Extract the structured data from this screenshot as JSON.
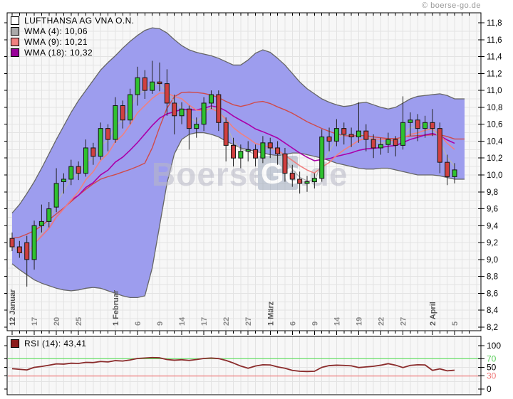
{
  "header": {
    "copyright": "© boerse-go.de"
  },
  "watermark": {
    "part1": "Boerse",
    "part2": "Go",
    "part3": ".de"
  },
  "legend": {
    "items": [
      {
        "label": "LUFTHANSA AG VNA O.N.",
        "swatch": "#ffffff"
      },
      {
        "label": "WMA (4): 10,06",
        "swatch": "#aaaaaa"
      },
      {
        "label": "WMA (9): 10,21",
        "swatch": "#f08080"
      },
      {
        "label": "WMA (18): 10,32",
        "swatch": "#990099"
      }
    ]
  },
  "rsi_legend": {
    "label": "RSI (14): 43,41",
    "swatch": "#8b1a1a"
  },
  "chart_data": [
    {
      "type": "candlestick",
      "title": "LUFTHANSA AG VNA O.N.",
      "ylim": [
        8.2,
        11.8
      ],
      "grid": true,
      "y_ticks": [
        {
          "v": 8.2,
          "label": "8,2"
        },
        {
          "v": 8.4,
          "label": "8,4"
        },
        {
          "v": 8.6,
          "label": "8,6"
        },
        {
          "v": 8.8,
          "label": "8,8"
        },
        {
          "v": 9.0,
          "label": "9,0"
        },
        {
          "v": 9.2,
          "label": "9,2"
        },
        {
          "v": 9.4,
          "label": "9,4"
        },
        {
          "v": 9.6,
          "label": "9,6"
        },
        {
          "v": 9.8,
          "label": "9,8"
        },
        {
          "v": 10.0,
          "label": "10,0"
        },
        {
          "v": 10.2,
          "label": "10,2"
        },
        {
          "v": 10.4,
          "label": "10,4"
        },
        {
          "v": 10.6,
          "label": "10,6"
        },
        {
          "v": 10.8,
          "label": "10,8"
        },
        {
          "v": 11.0,
          "label": "11,0"
        },
        {
          "v": 11.2,
          "label": "11,2"
        },
        {
          "v": 11.4,
          "label": "11,4"
        },
        {
          "v": 11.6,
          "label": "11,6"
        },
        {
          "v": 11.8,
          "label": "11,8"
        }
      ],
      "x_labels": [
        {
          "i": 0,
          "text": "12 Januar",
          "major": true
        },
        {
          "i": 3,
          "text": "17"
        },
        {
          "i": 6,
          "text": "20"
        },
        {
          "i": 9,
          "text": "25"
        },
        {
          "i": 14,
          "text": "1 Februar",
          "major": true
        },
        {
          "i": 17,
          "text": "6"
        },
        {
          "i": 20,
          "text": "9"
        },
        {
          "i": 23,
          "text": "14"
        },
        {
          "i": 26,
          "text": "17"
        },
        {
          "i": 29,
          "text": "22"
        },
        {
          "i": 32,
          "text": "27"
        },
        {
          "i": 35,
          "text": "1 März",
          "major": true
        },
        {
          "i": 38,
          "text": "6"
        },
        {
          "i": 41,
          "text": "9"
        },
        {
          "i": 44,
          "text": "14"
        },
        {
          "i": 47,
          "text": "19"
        },
        {
          "i": 50,
          "text": "22"
        },
        {
          "i": 53,
          "text": "27"
        },
        {
          "i": 57,
          "text": "2 April",
          "major": true
        },
        {
          "i": 60,
          "text": "5"
        }
      ],
      "candles": [
        [
          9.25,
          9.32,
          9.1,
          9.15
        ],
        [
          9.15,
          9.22,
          9.02,
          9.08
        ],
        [
          9.2,
          9.28,
          8.68,
          9.0
        ],
        [
          9.0,
          9.46,
          8.88,
          9.4
        ],
        [
          9.4,
          9.65,
          9.32,
          9.45
        ],
        [
          9.45,
          9.68,
          9.38,
          9.6
        ],
        [
          9.62,
          10.08,
          9.56,
          9.9
        ],
        [
          9.92,
          10.02,
          9.78,
          9.95
        ],
        [
          9.95,
          10.18,
          9.88,
          10.1
        ],
        [
          10.1,
          10.16,
          9.94,
          10.02
        ],
        [
          10.02,
          10.42,
          9.98,
          10.32
        ],
        [
          10.32,
          10.38,
          10.12,
          10.22
        ],
        [
          10.22,
          10.62,
          10.18,
          10.55
        ],
        [
          10.55,
          10.6,
          10.28,
          10.42
        ],
        [
          10.42,
          10.92,
          10.38,
          10.82
        ],
        [
          10.82,
          10.88,
          10.55,
          10.65
        ],
        [
          10.65,
          11.02,
          10.6,
          10.95
        ],
        [
          10.95,
          11.28,
          10.82,
          11.15
        ],
        [
          11.15,
          11.24,
          10.9,
          11.0
        ],
        [
          11.0,
          11.35,
          10.96,
          11.1
        ],
        [
          11.1,
          11.33,
          10.99,
          11.08
        ],
        [
          11.08,
          11.25,
          10.7,
          10.85
        ],
        [
          10.85,
          10.95,
          10.48,
          10.7
        ],
        [
          10.7,
          10.86,
          10.6,
          10.78
        ],
        [
          10.78,
          10.82,
          10.3,
          10.55
        ],
        [
          10.55,
          10.68,
          10.44,
          10.6
        ],
        [
          10.6,
          10.92,
          10.52,
          10.85
        ],
        [
          10.85,
          11.0,
          10.78,
          10.95
        ],
        [
          10.95,
          11.0,
          10.52,
          10.62
        ],
        [
          10.62,
          10.68,
          10.16,
          10.35
        ],
        [
          10.35,
          10.44,
          10.1,
          10.2
        ],
        [
          10.2,
          10.36,
          10.08,
          10.28
        ],
        [
          10.28,
          10.4,
          10.16,
          10.3
        ],
        [
          10.3,
          10.36,
          10.1,
          10.2
        ],
        [
          10.2,
          10.46,
          10.14,
          10.38
        ],
        [
          10.38,
          10.44,
          10.2,
          10.32
        ],
        [
          10.32,
          10.4,
          10.12,
          10.25
        ],
        [
          10.25,
          10.32,
          9.92,
          10.02
        ],
        [
          10.02,
          10.12,
          9.86,
          9.95
        ],
        [
          9.95,
          10.04,
          9.78,
          9.9
        ],
        [
          9.9,
          9.99,
          9.8,
          9.92
        ],
        [
          9.92,
          10.02,
          9.84,
          9.96
        ],
        [
          9.96,
          10.54,
          9.92,
          10.45
        ],
        [
          10.45,
          10.56,
          10.28,
          10.4
        ],
        [
          10.4,
          10.66,
          10.34,
          10.55
        ],
        [
          10.55,
          10.62,
          10.36,
          10.48
        ],
        [
          10.48,
          10.56,
          10.33,
          10.45
        ],
        [
          10.45,
          10.86,
          10.38,
          10.52
        ],
        [
          10.52,
          10.6,
          10.28,
          10.42
        ],
        [
          10.42,
          10.48,
          10.2,
          10.32
        ],
        [
          10.32,
          10.44,
          10.24,
          10.36
        ],
        [
          10.36,
          10.5,
          10.26,
          10.42
        ],
        [
          10.42,
          10.46,
          10.22,
          10.35
        ],
        [
          10.35,
          10.93,
          10.3,
          10.62
        ],
        [
          10.62,
          10.74,
          10.46,
          10.65
        ],
        [
          10.65,
          10.72,
          10.4,
          10.55
        ],
        [
          10.55,
          10.7,
          10.44,
          10.62
        ],
        [
          10.62,
          10.78,
          10.46,
          10.55
        ],
        [
          10.55,
          10.62,
          10.02,
          10.15
        ],
        [
          10.15,
          10.24,
          9.88,
          9.98
        ],
        [
          9.98,
          10.14,
          9.9,
          10.06
        ]
      ],
      "band_upper": [
        9.55,
        9.65,
        9.78,
        9.92,
        10.08,
        10.25,
        10.42,
        10.58,
        10.74,
        10.88,
        11.0,
        11.12,
        11.24,
        11.33,
        11.41,
        11.5,
        11.58,
        11.65,
        11.71,
        11.74,
        11.73,
        11.68,
        11.6,
        11.53,
        11.48,
        11.45,
        11.43,
        11.41,
        11.38,
        11.34,
        11.3,
        11.3,
        11.36,
        11.44,
        11.48,
        11.45,
        11.38,
        11.3,
        11.2,
        11.1,
        11.02,
        10.96,
        10.9,
        10.86,
        10.83,
        10.81,
        10.82,
        10.85,
        10.86,
        10.83,
        10.8,
        10.78,
        10.8,
        10.85,
        10.9,
        10.93,
        10.94,
        10.95,
        10.96,
        10.94,
        10.9
      ],
      "band_lower": [
        8.95,
        8.88,
        8.82,
        8.76,
        8.72,
        8.69,
        8.66,
        8.64,
        8.63,
        8.64,
        8.66,
        8.67,
        8.66,
        8.63,
        8.6,
        8.57,
        8.55,
        8.55,
        8.57,
        8.9,
        9.4,
        9.9,
        10.25,
        10.42,
        10.48,
        10.5,
        10.5,
        10.48,
        10.45,
        10.4,
        10.36,
        10.32,
        10.3,
        10.28,
        10.26,
        10.24,
        10.23,
        10.24,
        10.26,
        10.26,
        10.24,
        10.22,
        10.2,
        10.17,
        10.14,
        10.12,
        10.1,
        10.08,
        10.07,
        10.07,
        10.08,
        10.08,
        10.06,
        10.04,
        10.02,
        10.0,
        10.0,
        10.0,
        9.99,
        9.97,
        9.95
      ],
      "wma_periods": [
        4,
        9,
        18
      ],
      "colors": {
        "background": "#f7f7f7",
        "grid": "#e3e3e3",
        "band_fill": "#9d9dee",
        "band_edge": "#666666",
        "band_mid": "#d04a4a",
        "wma4": "#b4b4b4",
        "wma9": "#f08080",
        "wma18": "#aa00aa",
        "candle_up": "#2fc12f",
        "candle_down": "#d04040",
        "wick": "#222222"
      }
    },
    {
      "type": "line",
      "name": "RSI (14)",
      "ylim": [
        0,
        100
      ],
      "levels": {
        "overbought": 70,
        "oversold": 30
      },
      "y_ticks": [
        {
          "v": 100,
          "label": "100",
          "color": "#000000"
        },
        {
          "v": 70,
          "label": "70",
          "color": "#55cc55"
        },
        {
          "v": 50,
          "label": "50",
          "color": "#000000"
        },
        {
          "v": 30,
          "label": "30",
          "color": "#ee7777"
        },
        {
          "v": 0,
          "label": "0",
          "color": "#000000"
        }
      ],
      "values": [
        47,
        45.5,
        44,
        50,
        52,
        55,
        58,
        57.5,
        59.5,
        59,
        61.5,
        61,
        63.5,
        62.5,
        65.5,
        64.5,
        67,
        70.5,
        71.5,
        72.5,
        72,
        68,
        66.5,
        67.5,
        66,
        68,
        70.5,
        71.5,
        70.2,
        66,
        60,
        53,
        48,
        53,
        56,
        55.5,
        51,
        48,
        43,
        41,
        40.5,
        41,
        50,
        54,
        55,
        54.5,
        53.5,
        49.5,
        51,
        52.5,
        55,
        58.5,
        55,
        49.5,
        54.5,
        56,
        55.5,
        43,
        46.5,
        42,
        43.41
      ],
      "colors": {
        "line": "#8a2b2b",
        "overbought_line": "#5ddd5d",
        "oversold_line": "#ee7777",
        "fill": "#4ee04e"
      }
    }
  ]
}
